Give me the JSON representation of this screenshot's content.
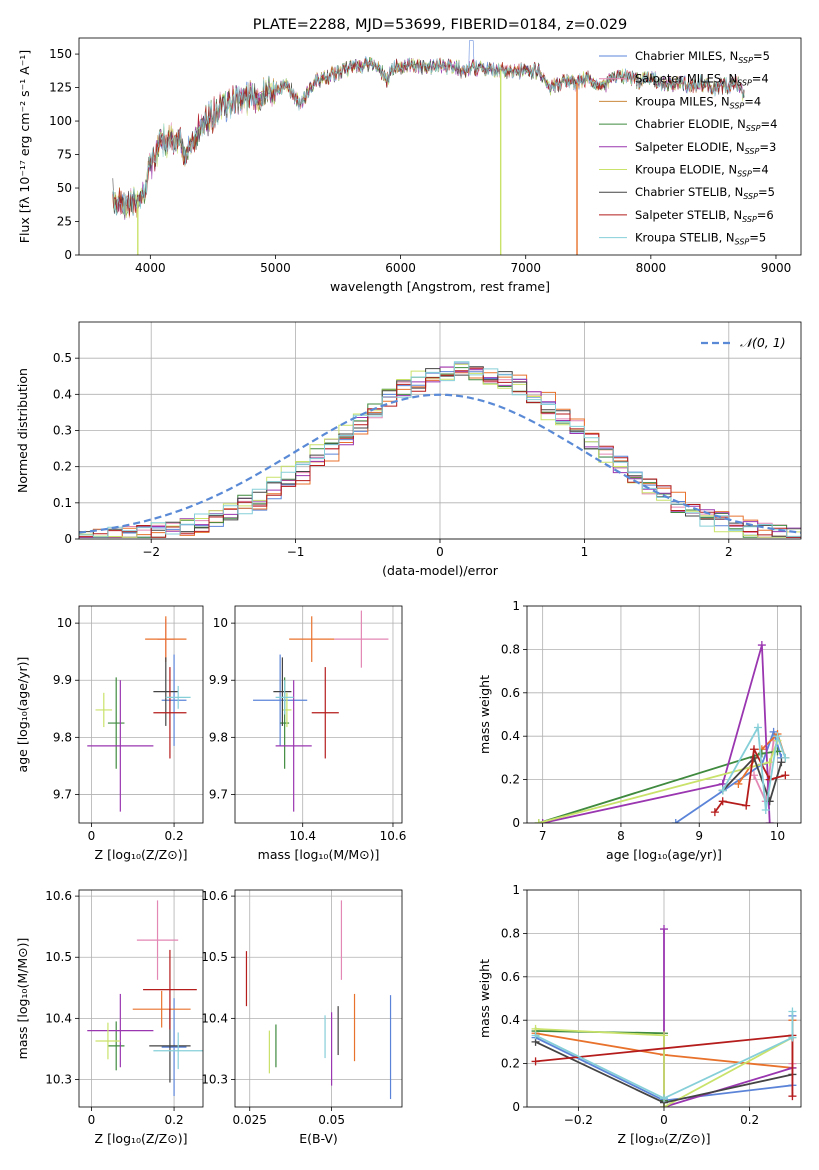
{
  "colors": {
    "chab_miles": "#5b84d8",
    "salp_miles": "#e387b4",
    "krou_miles": "#c98a3c",
    "chab_elodie": "#3f8a3f",
    "salp_elodie": "#9a36b0",
    "krou_elodie": "#c9e26a",
    "chab_stelib": "#444444",
    "salp_stelib": "#b51c1c",
    "krou_stelib": "#86cfd8",
    "orange": "#e8722c",
    "grid": "#b0b0b0",
    "gauss": "#5a8ad6"
  },
  "chart_data": [
    {
      "id": "spectrum",
      "type": "line",
      "title": "PLATE=2288, MJD=53699, FIBERID=0184, z=0.029",
      "xlabel": "wavelength [Angstrom, rest frame]",
      "ylabel": "Flux [fλ 10⁻¹⁷ erg cm⁻² s⁻¹ A⁻¹]",
      "xlim": [
        3430,
        9200
      ],
      "ylim": [
        0,
        162
      ],
      "xticks": [
        4000,
        5000,
        6000,
        7000,
        8000,
        9000
      ],
      "yticks": [
        0,
        25,
        50,
        75,
        100,
        125,
        150
      ],
      "grid": false,
      "legend": "top-right",
      "continuum": [
        [
          3700,
          45
        ],
        [
          3750,
          38
        ],
        [
          3800,
          36
        ],
        [
          3850,
          40
        ],
        [
          3900,
          40
        ],
        [
          3950,
          48
        ],
        [
          4000,
          68
        ],
        [
          4100,
          85
        ],
        [
          4200,
          88
        ],
        [
          4300,
          75
        ],
        [
          4400,
          98
        ],
        [
          4500,
          104
        ],
        [
          4600,
          112
        ],
        [
          4700,
          115
        ],
        [
          4800,
          118
        ],
        [
          4900,
          120
        ],
        [
          5000,
          124
        ],
        [
          5100,
          126
        ],
        [
          5200,
          112
        ],
        [
          5300,
          128
        ],
        [
          5400,
          132
        ],
        [
          5500,
          136
        ],
        [
          5600,
          140
        ],
        [
          5700,
          142
        ],
        [
          5800,
          144
        ],
        [
          5890,
          130
        ],
        [
          5950,
          140
        ],
        [
          6000,
          140
        ],
        [
          6100,
          141
        ],
        [
          6200,
          140
        ],
        [
          6300,
          141
        ],
        [
          6400,
          141
        ],
        [
          6500,
          138
        ],
        [
          6563,
          140
        ],
        [
          6600,
          140
        ],
        [
          6700,
          138
        ],
        [
          6800,
          138
        ],
        [
          6900,
          136
        ],
        [
          7000,
          138
        ],
        [
          7100,
          137
        ],
        [
          7200,
          125
        ],
        [
          7300,
          130
        ],
        [
          7400,
          128
        ],
        [
          7500,
          132
        ],
        [
          7600,
          125
        ],
        [
          7700,
          132
        ],
        [
          7800,
          134
        ],
        [
          7900,
          130
        ],
        [
          8000,
          132
        ],
        [
          8100,
          128
        ],
        [
          8200,
          128
        ],
        [
          8300,
          127
        ],
        [
          8400,
          128
        ],
        [
          8500,
          125
        ],
        [
          8600,
          126
        ],
        [
          8700,
          128
        ],
        [
          8750,
          118
        ]
      ],
      "legend_entries": [
        {
          "text": "Chabrier MILES, N",
          "sub": "SSP",
          "suffix": "=5",
          "color": "chab_miles"
        },
        {
          "text": "Salpeter MILES, N",
          "sub": "SSP",
          "suffix": "=4",
          "color": "salp_miles"
        },
        {
          "text": "Kroupa MILES, N",
          "sub": "SSP",
          "suffix": "=4",
          "color": "krou_miles"
        },
        {
          "text": "Chabrier ELODIE, N",
          "sub": "SSP",
          "suffix": "=4",
          "color": "chab_elodie"
        },
        {
          "text": "Salpeter ELODIE, N",
          "sub": "SSP",
          "suffix": "=3",
          "color": "salp_elodie"
        },
        {
          "text": "Kroupa ELODIE, N",
          "sub": "SSP",
          "suffix": "=4",
          "color": "krou_elodie"
        },
        {
          "text": "Chabrier STELIB, N",
          "sub": "SSP",
          "suffix": "=5",
          "color": "chab_stelib"
        },
        {
          "text": "Salpeter STELIB, N",
          "sub": "SSP",
          "suffix": "=6",
          "color": "salp_stelib"
        },
        {
          "text": "Kroupa STELIB, N",
          "sub": "SSP",
          "suffix": "=5",
          "color": "krou_stelib"
        }
      ],
      "dropouts": [
        {
          "x": 3900,
          "color": "krou_elodie"
        },
        {
          "x": 6800,
          "color": "krou_elodie"
        },
        {
          "x": 7410,
          "color": "orange"
        }
      ]
    },
    {
      "id": "hist",
      "type": "bar",
      "xlabel": "(data-model)/error",
      "ylabel": "Normed distribution",
      "xlim": [
        -2.5,
        2.5
      ],
      "ylim": [
        0,
        0.6
      ],
      "xticks": [
        -2,
        -1,
        0,
        1,
        2
      ],
      "yticks": [
        0,
        0.1,
        0.2,
        0.3,
        0.4,
        0.5
      ],
      "grid": true,
      "legend": "top-right",
      "legend_label": "𝒩(0, 1)",
      "bin_width": 0.1,
      "series": [
        {
          "color": "chab_miles",
          "offset": 0.08
        },
        {
          "color": "salp_miles",
          "offset": 0.05
        },
        {
          "color": "orange",
          "offset": 0.1
        },
        {
          "color": "chab_elodie",
          "offset": 0.02
        },
        {
          "color": "salp_elodie",
          "offset": 0.06
        },
        {
          "color": "krou_elodie",
          "offset": 0.0
        },
        {
          "color": "chab_stelib",
          "offset": 0.04
        },
        {
          "color": "salp_stelib",
          "offset": 0.07
        },
        {
          "color": "krou_stelib",
          "offset": 0.03
        }
      ]
    },
    {
      "id": "age_vs_Z",
      "type": "scatter",
      "xlabel": "Z [log₁₀(Z/Z⊙)]",
      "ylabel": "age  [log₁₀(age/yr)]",
      "xlim": [
        -0.03,
        0.27
      ],
      "ylim": [
        9.65,
        10.03
      ],
      "xticks": [
        0.0,
        0.2
      ],
      "yticks": [
        9.7,
        9.8,
        9.9,
        10.0
      ],
      "grid": true,
      "points": [
        {
          "color": "chab_miles",
          "x": 0.2,
          "y": 9.865,
          "xe": 0.03,
          "ye": 0.08
        },
        {
          "color": "salp_miles",
          "x": 0.18,
          "y": 9.972,
          "xe": 0.02,
          "ye": 0.035
        },
        {
          "color": "orange",
          "x": 0.18,
          "y": 9.972,
          "xe": 0.05,
          "ye": 0.04
        },
        {
          "color": "chab_elodie",
          "x": 0.06,
          "y": 9.825,
          "xe": 0.02,
          "ye": 0.08
        },
        {
          "color": "salp_elodie",
          "x": 0.07,
          "y": 9.785,
          "xe": 0.08,
          "ye": 0.115
        },
        {
          "color": "krou_elodie",
          "x": 0.03,
          "y": 9.848,
          "xe": 0.02,
          "ye": 0.03
        },
        {
          "color": "chab_stelib",
          "x": 0.18,
          "y": 9.88,
          "xe": 0.03,
          "ye": 0.06
        },
        {
          "color": "salp_stelib",
          "x": 0.19,
          "y": 9.843,
          "xe": 0.04,
          "ye": 0.08
        },
        {
          "color": "krou_stelib",
          "x": 0.21,
          "y": 9.87,
          "xe": 0.03,
          "ye": 0.02
        }
      ]
    },
    {
      "id": "age_vs_mass",
      "type": "scatter",
      "xlabel": "mass [log₁₀(M/M⊙)]",
      "ylabel": "",
      "xlim": [
        10.25,
        10.62
      ],
      "ylim": [
        9.65,
        10.03
      ],
      "xticks": [
        10.4,
        10.6
      ],
      "yticks": [
        9.7,
        9.8,
        9.9,
        10.0
      ],
      "grid": true,
      "points": [
        {
          "color": "chab_miles",
          "x": 10.35,
          "y": 9.865,
          "xe": 0.06,
          "ye": 0.08
        },
        {
          "color": "salp_miles",
          "x": 10.53,
          "y": 9.972,
          "xe": 0.06,
          "ye": 0.05
        },
        {
          "color": "orange",
          "x": 10.42,
          "y": 9.972,
          "xe": 0.05,
          "ye": 0.04
        },
        {
          "color": "chab_elodie",
          "x": 10.36,
          "y": 9.825,
          "xe": 0.01,
          "ye": 0.08
        },
        {
          "color": "salp_elodie",
          "x": 10.38,
          "y": 9.785,
          "xe": 0.04,
          "ye": 0.115
        },
        {
          "color": "krou_elodie",
          "x": 10.365,
          "y": 9.848,
          "xe": 0.01,
          "ye": 0.03
        },
        {
          "color": "chab_stelib",
          "x": 10.355,
          "y": 9.88,
          "xe": 0.02,
          "ye": 0.06
        },
        {
          "color": "salp_stelib",
          "x": 10.45,
          "y": 9.843,
          "xe": 0.03,
          "ye": 0.08
        },
        {
          "color": "krou_stelib",
          "x": 10.36,
          "y": 9.87,
          "xe": 0.02,
          "ye": 0.03
        }
      ]
    },
    {
      "id": "weight_vs_age",
      "type": "line",
      "xlabel": "age  [log₁₀(age/yr)]",
      "ylabel": "mass weight",
      "xlim": [
        6.8,
        10.3
      ],
      "ylim": [
        0,
        1.0
      ],
      "xticks": [
        7,
        8,
        9,
        10
      ],
      "yticks": [
        0.0,
        0.2,
        0.4,
        0.6,
        0.8,
        1.0
      ],
      "grid": true,
      "series": [
        {
          "color": "chab_miles",
          "x": [
            8.7,
            9.8,
            9.95,
            10.05
          ],
          "y": [
            0.0,
            0.27,
            0.42,
            0.3
          ]
        },
        {
          "color": "salp_miles",
          "x": [
            9.7,
            9.85,
            9.95
          ],
          "y": [
            0.22,
            0.1,
            0.38
          ]
        },
        {
          "color": "orange",
          "x": [
            9.5,
            9.8,
            10.0,
            10.1
          ],
          "y": [
            0.18,
            0.34,
            0.41,
            0.3
          ]
        },
        {
          "color": "chab_elodie",
          "x": [
            6.95,
            9.8,
            10.0
          ],
          "y": [
            0.0,
            0.32,
            0.33
          ]
        },
        {
          "color": "salp_elodie",
          "x": [
            7.0,
            9.3,
            9.8,
            9.9
          ],
          "y": [
            0.0,
            0.18,
            0.82,
            0.0
          ]
        },
        {
          "color": "krou_elodie",
          "x": [
            6.95,
            9.9,
            10.0
          ],
          "y": [
            0.0,
            0.28,
            0.38
          ]
        },
        {
          "color": "chab_stelib",
          "x": [
            9.3,
            9.7,
            9.9,
            10.05
          ],
          "y": [
            0.15,
            0.3,
            0.1,
            0.28
          ]
        },
        {
          "color": "salp_stelib",
          "x": [
            9.2,
            9.3,
            9.6,
            9.7,
            9.9,
            10.1
          ],
          "y": [
            0.05,
            0.1,
            0.08,
            0.34,
            0.2,
            0.22
          ]
        },
        {
          "color": "krou_stelib",
          "x": [
            9.3,
            9.75,
            9.85,
            10.0,
            10.1
          ],
          "y": [
            0.15,
            0.44,
            0.06,
            0.4,
            0.3
          ]
        }
      ]
    },
    {
      "id": "mass_vs_Z",
      "type": "scatter",
      "xlabel": "Z [log₁₀(Z/Z⊙)]",
      "ylabel": "mass [log₁₀(M/M⊙)]",
      "xlim": [
        -0.03,
        0.27
      ],
      "ylim": [
        10.255,
        10.61
      ],
      "xticks": [
        0.0,
        0.2
      ],
      "yticks": [
        10.3,
        10.4,
        10.5,
        10.6
      ],
      "grid": true,
      "points": [
        {
          "color": "chab_miles",
          "x": 0.2,
          "y": 10.353,
          "xe": 0.03,
          "ye": 0.08
        },
        {
          "color": "salp_miles",
          "x": 0.16,
          "y": 10.528,
          "xe": 0.05,
          "ye": 0.065
        },
        {
          "color": "orange",
          "x": 0.17,
          "y": 10.415,
          "xe": 0.07,
          "ye": 0.03
        },
        {
          "color": "chab_elodie",
          "x": 0.06,
          "y": 10.355,
          "xe": 0.02,
          "ye": 0.04
        },
        {
          "color": "salp_elodie",
          "x": 0.07,
          "y": 10.38,
          "xe": 0.08,
          "ye": 0.06
        },
        {
          "color": "krou_elodie",
          "x": 0.04,
          "y": 10.363,
          "xe": 0.03,
          "ye": 0.03
        },
        {
          "color": "chab_stelib",
          "x": 0.19,
          "y": 10.355,
          "xe": 0.05,
          "ye": 0.06
        },
        {
          "color": "salp_stelib",
          "x": 0.19,
          "y": 10.447,
          "xe": 0.065,
          "ye": 0.065
        },
        {
          "color": "krou_stelib",
          "x": 0.21,
          "y": 10.347,
          "xe": 0.06,
          "ye": 0.03
        }
      ]
    },
    {
      "id": "mass_vs_ebv",
      "type": "scatter",
      "xlabel": "E(B-V)",
      "ylabel": "",
      "xlim": [
        0.0205,
        0.0715
      ],
      "ylim": [
        10.255,
        10.61
      ],
      "xticks": [
        0.025,
        0.05
      ],
      "yticks": [
        10.3,
        10.4,
        10.5,
        10.6
      ],
      "grid": true,
      "points": [
        {
          "color": "chab_miles",
          "x": 0.068,
          "y": 10.353,
          "xe": 0,
          "ye": 0.085
        },
        {
          "color": "salp_miles",
          "x": 0.053,
          "y": 10.528,
          "xe": 0,
          "ye": 0.065
        },
        {
          "color": "orange",
          "x": 0.057,
          "y": 10.385,
          "xe": 0,
          "ye": 0.055
        },
        {
          "color": "chab_elodie",
          "x": 0.033,
          "y": 10.355,
          "xe": 0,
          "ye": 0.035
        },
        {
          "color": "salp_elodie",
          "x": 0.05,
          "y": 10.35,
          "xe": 0,
          "ye": 0.06
        },
        {
          "color": "krou_elodie",
          "x": 0.031,
          "y": 10.345,
          "xe": 0,
          "ye": 0.035
        },
        {
          "color": "chab_stelib",
          "x": 0.052,
          "y": 10.38,
          "xe": 0,
          "ye": 0.04
        },
        {
          "color": "salp_stelib",
          "x": 0.024,
          "y": 10.465,
          "xe": 0,
          "ye": 0.045
        },
        {
          "color": "krou_stelib",
          "x": 0.048,
          "y": 10.37,
          "xe": 0,
          "ye": 0.035
        }
      ]
    },
    {
      "id": "weight_vs_Z",
      "type": "line",
      "xlabel": "Z [log₁₀(Z/Z⊙)]",
      "ylabel": "mass weight",
      "xlim": [
        -0.32,
        0.32
      ],
      "ylim": [
        0,
        1.0
      ],
      "xticks": [
        -0.2,
        0.0,
        0.2
      ],
      "yticks": [
        0.0,
        0.2,
        0.4,
        0.6,
        0.8,
        1.0
      ],
      "grid": true,
      "series": [
        {
          "color": "chab_miles",
          "x": [
            -0.3,
            0.0,
            0.3,
            0.3
          ],
          "y": [
            0.32,
            0.03,
            0.1,
            0.42
          ]
        },
        {
          "color": "salp_miles",
          "x": [
            0.3,
            0.3,
            0.3
          ],
          "y": [
            0.05,
            0.2,
            0.4
          ]
        },
        {
          "color": "orange",
          "x": [
            -0.3,
            0.0,
            0.3,
            0.3
          ],
          "y": [
            0.34,
            0.24,
            0.18,
            0.4
          ]
        },
        {
          "color": "chab_elodie",
          "x": [
            -0.3,
            0.0,
            0.0
          ],
          "y": [
            0.35,
            0.34,
            0.03
          ]
        },
        {
          "color": "salp_elodie",
          "x": [
            0.0,
            0.0,
            0.3
          ],
          "y": [
            0.82,
            0.0,
            0.18
          ]
        },
        {
          "color": "krou_elodie",
          "x": [
            -0.3,
            0.0,
            0.0,
            0.3
          ],
          "y": [
            0.36,
            0.33,
            0.0,
            0.32
          ]
        },
        {
          "color": "chab_stelib",
          "x": [
            -0.3,
            0.0,
            0.3
          ],
          "y": [
            0.3,
            0.02,
            0.15
          ]
        },
        {
          "color": "salp_stelib",
          "x": [
            -0.3,
            0.3,
            0.3
          ],
          "y": [
            0.21,
            0.33,
            0.05
          ]
        },
        {
          "color": "krou_stelib",
          "x": [
            -0.3,
            0.0,
            0.3,
            0.3
          ],
          "y": [
            0.33,
            0.04,
            0.32,
            0.44
          ]
        }
      ]
    }
  ]
}
